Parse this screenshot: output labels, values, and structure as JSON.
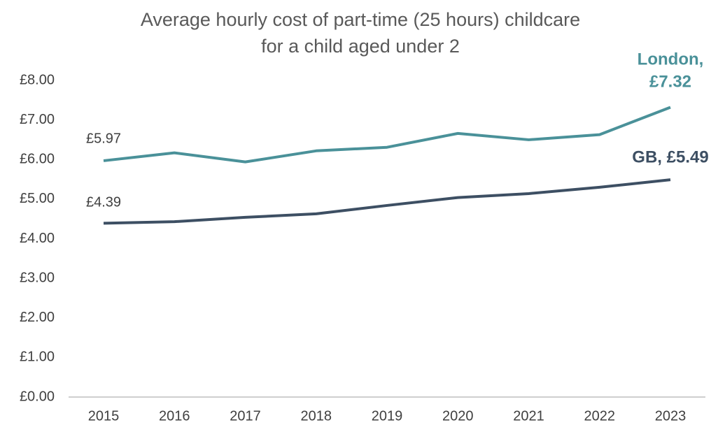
{
  "chart_data": {
    "type": "line",
    "title": [
      "Average hourly cost of part-time (25 hours) childcare",
      "for a child aged under 2"
    ],
    "categories": [
      "2015",
      "2016",
      "2017",
      "2018",
      "2019",
      "2020",
      "2021",
      "2022",
      "2023"
    ],
    "series": [
      {
        "name": "London",
        "color": "#4a9199",
        "values": [
          5.97,
          6.17,
          5.94,
          6.22,
          6.31,
          6.66,
          6.5,
          6.63,
          7.32
        ]
      },
      {
        "name": "GB",
        "color": "#3d4f63",
        "values": [
          4.39,
          4.43,
          4.54,
          4.63,
          4.84,
          5.04,
          5.14,
          5.3,
          5.49
        ]
      }
    ],
    "ylim": [
      0,
      8
    ],
    "yticks": [
      {
        "value": 0,
        "label": "£0.00"
      },
      {
        "value": 1,
        "label": "£1.00"
      },
      {
        "value": 2,
        "label": "£2.00"
      },
      {
        "value": 3,
        "label": "£3.00"
      },
      {
        "value": 4,
        "label": "£4.00"
      },
      {
        "value": 5,
        "label": "£5.00"
      },
      {
        "value": 6,
        "label": "£6.00"
      },
      {
        "value": 7,
        "label": "£7.00"
      },
      {
        "value": 8,
        "label": "£8.00"
      }
    ],
    "grid": false,
    "annotations": [
      {
        "text": "£5.97"
      },
      {
        "text": "£4.39"
      },
      {
        "text": "London,"
      },
      {
        "text": "£7.32"
      },
      {
        "text": "GB, £5.49"
      }
    ]
  }
}
